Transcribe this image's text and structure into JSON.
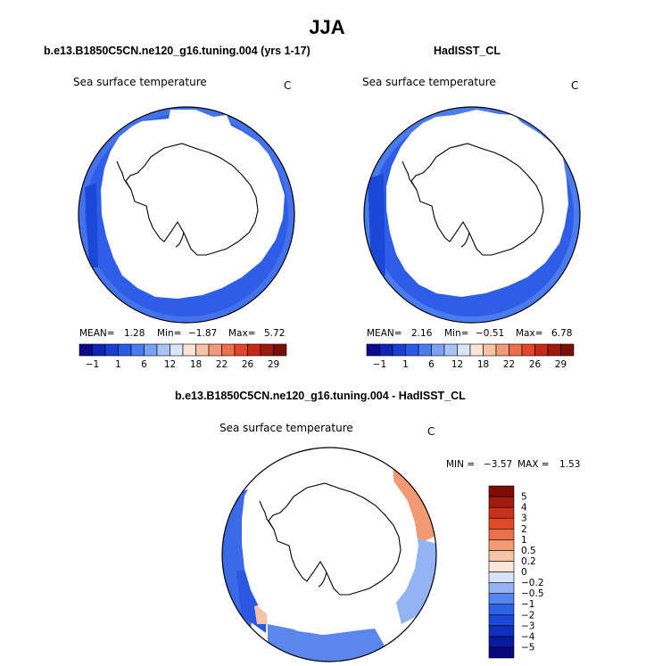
{
  "main_title": "JJA",
  "chart_data": [
    {
      "type": "map",
      "panel_title": "b.e13.B1850C5CN.ne120_g16.tuning.004 (yrs 1-17)",
      "variable": "Sea surface temperature",
      "units": "C",
      "projection": "south-polar stereographic",
      "stats": {
        "mean_label": "MEAN=",
        "mean": "1.28",
        "min_label": "Min=",
        "min": "-1.87",
        "max_label": "Max=",
        "max": "5.72"
      },
      "colorbar": {
        "levels": [
          "-1",
          "1",
          "6",
          "12",
          "18",
          "22",
          "26",
          "29"
        ],
        "colors": [
          "#0b0b8c",
          "#1023b4",
          "#1a3dd6",
          "#2a5ae8",
          "#4a7bef",
          "#7ba2f2",
          "#a9c3f5",
          "#d8e6fa",
          "#fbe3d6",
          "#f7c1a6",
          "#f29a78",
          "#ec6e4c",
          "#e2452a",
          "#c42a16",
          "#9c1a0e",
          "#7a0d05"
        ]
      }
    },
    {
      "type": "map",
      "panel_title": "HadISST_CL",
      "variable": "Sea surface temperature",
      "units": "C",
      "projection": "south-polar stereographic",
      "stats": {
        "mean_label": "MEAN=",
        "mean": "2.16",
        "min_label": "Min=",
        "min": "-0.51",
        "max_label": "Max=",
        "max": "6.78"
      },
      "colorbar": {
        "levels": [
          "-1",
          "1",
          "6",
          "12",
          "18",
          "22",
          "26",
          "29"
        ],
        "colors": [
          "#0b0b8c",
          "#1023b4",
          "#1a3dd6",
          "#2a5ae8",
          "#4a7bef",
          "#7ba2f2",
          "#a9c3f5",
          "#d8e6fa",
          "#fbe3d6",
          "#f7c1a6",
          "#f29a78",
          "#ec6e4c",
          "#e2452a",
          "#c42a16",
          "#9c1a0e",
          "#7a0d05"
        ]
      }
    },
    {
      "type": "map",
      "panel_title": "b.e13.B1850C5CN.ne120_g16.tuning.004 - HadISST_CL",
      "variable": "Sea surface temperature",
      "units": "C",
      "projection": "south-polar stereographic",
      "stats": {
        "min_label": "MIN =",
        "min": "-3.57",
        "max_label": "MAX =",
        "max": "1.53"
      },
      "colorbar": {
        "levels": [
          "-5",
          "-4",
          "-3",
          "-2",
          "-1",
          "-0.5",
          "-0.2",
          "0",
          "0.2",
          "0.5",
          "1",
          "2",
          "3",
          "4",
          "5"
        ],
        "colors": [
          "#08087a",
          "#0a1a9e",
          "#1230c0",
          "#1c48d8",
          "#2e62e6",
          "#5585ee",
          "#93b3f3",
          "#d6e3f9",
          "#fbe6d9",
          "#f6c4a9",
          "#f29a74",
          "#ec6f47",
          "#e24a26",
          "#c8301a",
          "#a01c0e",
          "#7d0c05"
        ]
      }
    }
  ]
}
